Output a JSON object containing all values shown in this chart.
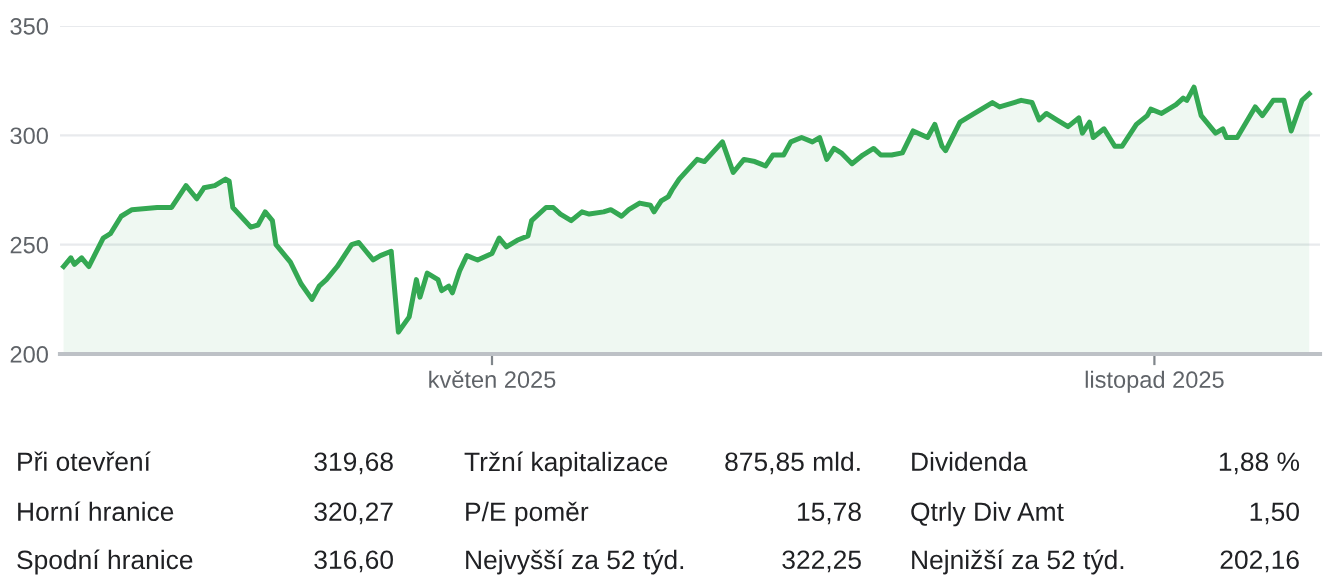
{
  "chart_data": [
    {
      "type": "area",
      "color": "#34a853",
      "grid": "y",
      "ylim": [
        200,
        350
      ],
      "yticks": [
        200,
        250,
        300,
        350
      ],
      "xlim": [
        "2025-01-01",
        "2025-12-17"
      ],
      "xticks": [
        {
          "value": "2025-05-01",
          "label": "květen 2025"
        },
        {
          "value": "2025-11-01",
          "label": "listopad 2025"
        }
      ],
      "x": [
        "2025-01-02",
        "2025-01-04",
        "2025-01-05",
        "2025-01-07",
        "2025-01-09",
        "2025-01-13",
        "2025-01-15",
        "2025-01-18",
        "2025-01-21",
        "2025-01-28",
        "2025-02-01",
        "2025-02-05",
        "2025-02-08",
        "2025-02-10",
        "2025-02-13",
        "2025-02-16",
        "2025-02-17",
        "2025-02-18",
        "2025-02-23",
        "2025-02-25",
        "2025-02-27",
        "2025-03-01",
        "2025-03-02",
        "2025-03-06",
        "2025-03-09",
        "2025-03-12",
        "2025-03-14",
        "2025-03-16",
        "2025-03-19",
        "2025-03-23",
        "2025-03-25",
        "2025-03-27",
        "2025-03-29",
        "2025-03-31",
        "2025-04-03",
        "2025-04-05",
        "2025-04-08",
        "2025-04-10",
        "2025-04-11",
        "2025-04-13",
        "2025-04-16",
        "2025-04-17",
        "2025-04-19",
        "2025-04-20",
        "2025-04-22",
        "2025-04-24",
        "2025-04-27",
        "2025-05-01",
        "2025-05-03",
        "2025-05-05",
        "2025-05-08",
        "2025-05-11",
        "2025-05-12",
        "2025-05-16",
        "2025-05-18",
        "2025-05-20",
        "2025-05-23",
        "2025-05-26",
        "2025-05-28",
        "2025-06-01",
        "2025-06-03",
        "2025-06-06",
        "2025-06-08",
        "2025-06-11",
        "2025-06-14",
        "2025-06-15",
        "2025-06-17",
        "2025-06-19",
        "2025-06-20",
        "2025-06-22",
        "2025-06-27",
        "2025-06-29",
        "2025-07-04",
        "2025-07-07",
        "2025-07-10",
        "2025-07-13",
        "2025-07-16",
        "2025-07-18",
        "2025-07-21",
        "2025-07-23",
        "2025-07-26",
        "2025-07-29",
        "2025-07-31",
        "2025-08-02",
        "2025-08-04",
        "2025-08-06",
        "2025-08-09",
        "2025-08-12",
        "2025-08-15",
        "2025-08-17",
        "2025-08-20",
        "2025-08-23",
        "2025-08-26",
        "2025-08-30",
        "2025-09-01",
        "2025-09-03",
        "2025-09-04",
        "2025-09-08",
        "2025-09-12",
        "2025-09-17",
        "2025-09-19",
        "2025-09-23",
        "2025-09-25",
        "2025-09-28",
        "2025-09-30",
        "2025-10-02",
        "2025-10-05",
        "2025-10-08",
        "2025-10-11",
        "2025-10-12",
        "2025-10-14",
        "2025-10-15",
        "2025-10-18",
        "2025-10-21",
        "2025-10-23",
        "2025-10-27",
        "2025-10-30",
        "2025-10-31",
        "2025-11-03",
        "2025-11-07",
        "2025-11-09",
        "2025-11-10",
        "2025-11-12",
        "2025-11-14",
        "2025-11-18",
        "2025-11-20",
        "2025-11-21",
        "2025-11-24",
        "2025-11-29",
        "2025-12-01",
        "2025-12-04",
        "2025-12-07",
        "2025-12-09",
        "2025-12-12",
        "2025-12-14"
      ],
      "values": [
        240,
        244,
        241,
        244,
        240,
        253,
        255,
        263,
        266,
        267,
        267,
        277,
        271,
        276,
        277,
        280,
        279,
        267,
        258,
        259,
        265,
        261,
        250,
        242,
        232,
        225,
        231,
        234,
        240,
        250,
        251,
        247,
        243,
        245,
        247,
        210,
        217,
        234,
        226,
        237,
        234,
        229,
        231,
        228,
        238,
        245,
        243,
        246,
        253,
        249,
        252,
        254,
        261,
        267,
        267,
        264,
        261,
        265,
        264,
        265,
        266,
        263,
        266,
        269,
        268,
        265,
        270,
        272,
        275,
        280,
        289,
        288,
        297,
        283,
        289,
        288,
        286,
        291,
        291,
        297,
        299,
        297,
        299,
        289,
        294,
        292,
        287,
        291,
        294,
        291,
        291,
        292,
        302,
        299,
        305,
        295,
        293,
        306,
        310,
        315,
        313,
        315,
        316,
        315,
        307,
        310,
        307,
        304,
        308,
        301,
        306,
        299,
        303,
        295,
        295,
        305,
        309,
        312,
        310,
        314,
        317,
        316,
        322,
        309,
        301,
        303,
        299,
        299,
        313,
        309,
        316,
        316,
        302,
        316,
        319
      ]
    },
    {
      "type": "other",
      "annotations": [
        "Při otevření",
        "319,68",
        "Tržní kapitalizace",
        "875,85 mld.",
        "Dividenda",
        "1,88 %",
        "Horní hranice",
        "320,27",
        "P/E poměr",
        "15,78",
        "Qtrly Div Amt",
        "1,50",
        "Spodní hranice",
        "316,60",
        "Nejvyšší za 52 týd.",
        "322,25",
        "Nejnižší za 52 týd.",
        "202,16"
      ]
    }
  ]
}
